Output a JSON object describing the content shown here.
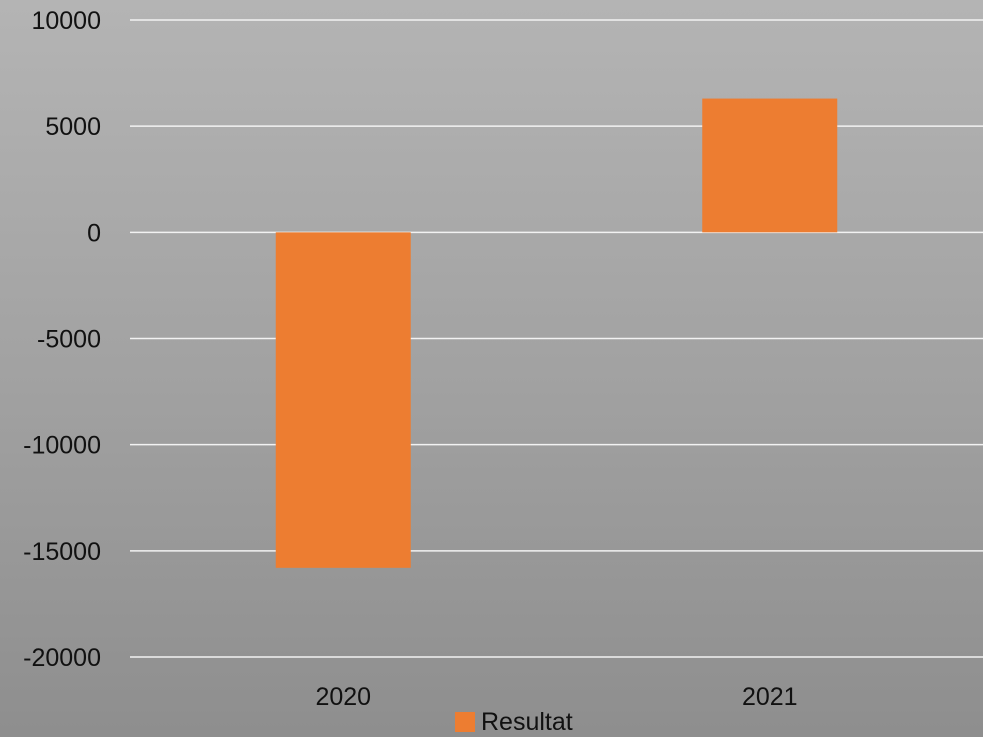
{
  "chart_data": {
    "type": "bar",
    "categories": [
      "2020",
      "2021"
    ],
    "series": [
      {
        "name": "Resultat",
        "values": [
          -15800,
          6300
        ],
        "color": "#ed7d31"
      }
    ],
    "title": "",
    "xlabel": "",
    "ylabel": "",
    "ylim": [
      -20000,
      10000
    ],
    "yticks": [
      10000,
      5000,
      0,
      -5000,
      -10000,
      -15000,
      -20000
    ],
    "grid": true,
    "gridline_color": "#f2f2f2",
    "legend_position": "bottom"
  }
}
